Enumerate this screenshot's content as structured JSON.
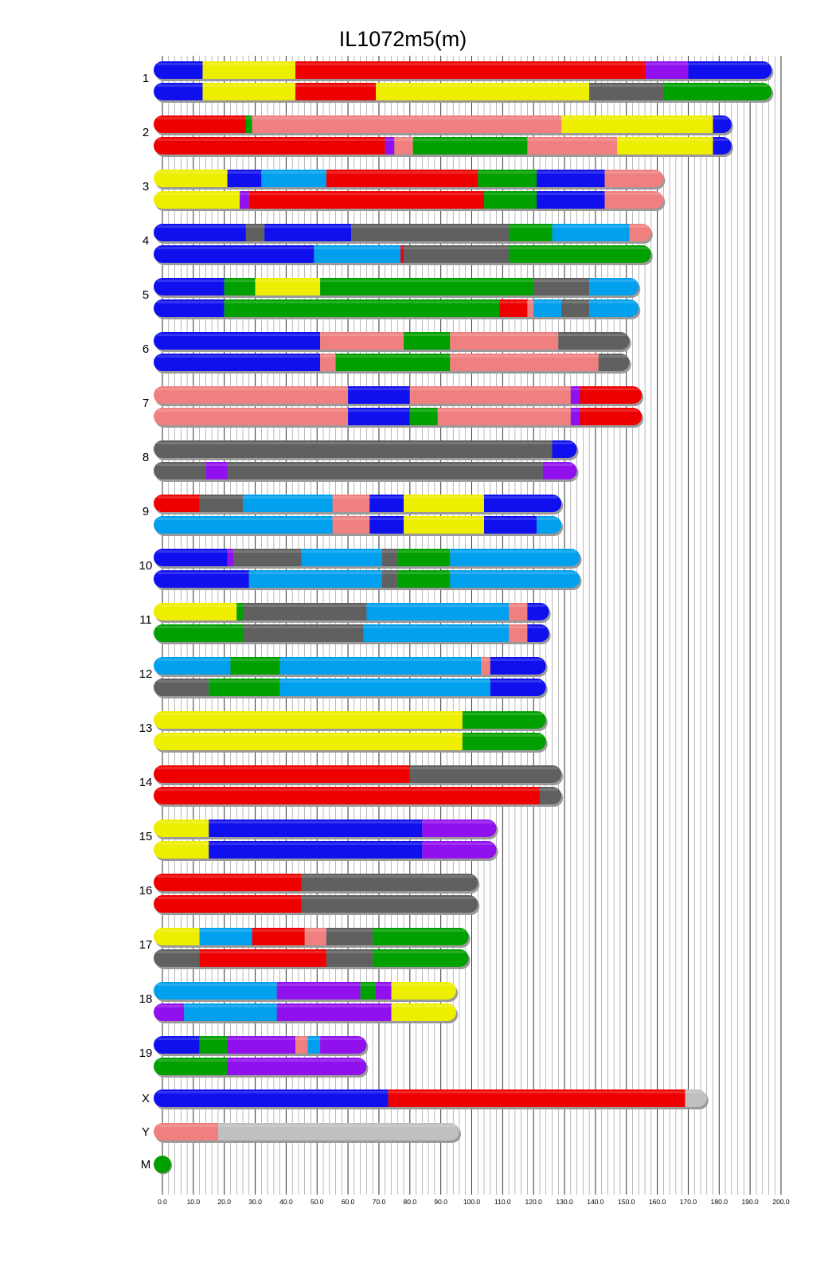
{
  "chart_data": {
    "type": "chromosome_haplotype_map",
    "title": "IL1072m5(m)",
    "x_axis": {
      "min": 0,
      "max": 200,
      "tick_labels": [
        "0.0",
        "10.0",
        "20.0",
        "30.0",
        "40.0",
        "50.0",
        "60.0",
        "70.0",
        "80.0",
        "90.0",
        "100.0",
        "110.0",
        "120.0",
        "130.0",
        "140.0",
        "150.0",
        "160.0",
        "170.0",
        "180.0",
        "190.0",
        "200.0"
      ],
      "minor_grid_step": 2
    },
    "palette": {
      "blue": "#1010ee",
      "yellow": "#eeee00",
      "red": "#ee0000",
      "purple": "#9010ee",
      "green": "#00a000",
      "gray": "#606060",
      "pink": "#f08080",
      "lightblue": "#00a0ee",
      "lightgray": "#c0c0c0"
    },
    "chromosomes": [
      {
        "label": "1",
        "length": 197,
        "haplotypes": [
          [
            [
              0,
              "blue"
            ],
            [
              13,
              "yellow"
            ],
            [
              43,
              "red"
            ],
            [
              156,
              "purple"
            ],
            [
              170,
              "blue"
            ]
          ],
          [
            [
              0,
              "blue"
            ],
            [
              13,
              "yellow"
            ],
            [
              43,
              "red"
            ],
            [
              69,
              "yellow"
            ],
            [
              138,
              "gray"
            ],
            [
              162,
              "green"
            ]
          ]
        ]
      },
      {
        "label": "2",
        "length": 184,
        "haplotypes": [
          [
            [
              0,
              "red"
            ],
            [
              27,
              "green"
            ],
            [
              29,
              "pink"
            ],
            [
              129,
              "yellow"
            ],
            [
              178,
              "blue"
            ]
          ],
          [
            [
              0,
              "red"
            ],
            [
              72,
              "purple"
            ],
            [
              75,
              "pink"
            ],
            [
              81,
              "green"
            ],
            [
              118,
              "pink"
            ],
            [
              147,
              "yellow"
            ],
            [
              178,
              "blue"
            ]
          ]
        ]
      },
      {
        "label": "3",
        "length": 162,
        "haplotypes": [
          [
            [
              0,
              "yellow"
            ],
            [
              21,
              "blue"
            ],
            [
              32,
              "lightblue"
            ],
            [
              53,
              "red"
            ],
            [
              102,
              "green"
            ],
            [
              121,
              "blue"
            ],
            [
              143,
              "pink"
            ]
          ],
          [
            [
              0,
              "yellow"
            ],
            [
              25,
              "purple"
            ],
            [
              28,
              "red"
            ],
            [
              104,
              "green"
            ],
            [
              121,
              "blue"
            ],
            [
              143,
              "pink"
            ]
          ]
        ]
      },
      {
        "label": "4",
        "length": 158,
        "haplotypes": [
          [
            [
              0,
              "blue"
            ],
            [
              27,
              "gray"
            ],
            [
              33,
              "blue"
            ],
            [
              61,
              "gray"
            ],
            [
              112,
              "green"
            ],
            [
              126,
              "lightblue"
            ],
            [
              151,
              "pink"
            ]
          ],
          [
            [
              0,
              "blue"
            ],
            [
              49,
              "lightblue"
            ],
            [
              77,
              "red"
            ],
            [
              78,
              "gray"
            ],
            [
              112,
              "green"
            ]
          ]
        ]
      },
      {
        "label": "5",
        "length": 154,
        "haplotypes": [
          [
            [
              0,
              "blue"
            ],
            [
              20,
              "green"
            ],
            [
              30,
              "yellow"
            ],
            [
              51,
              "green"
            ],
            [
              120,
              "gray"
            ],
            [
              138,
              "lightblue"
            ]
          ],
          [
            [
              0,
              "blue"
            ],
            [
              20,
              "green"
            ],
            [
              109,
              "red"
            ],
            [
              118,
              "pink"
            ],
            [
              120,
              "lightblue"
            ],
            [
              129,
              "gray"
            ],
            [
              138,
              "lightblue"
            ]
          ]
        ]
      },
      {
        "label": "6",
        "length": 151,
        "haplotypes": [
          [
            [
              0,
              "blue"
            ],
            [
              51,
              "pink"
            ],
            [
              78,
              "green"
            ],
            [
              93,
              "pink"
            ],
            [
              128,
              "gray"
            ]
          ],
          [
            [
              0,
              "blue"
            ],
            [
              51,
              "pink"
            ],
            [
              56,
              "green"
            ],
            [
              93,
              "pink"
            ],
            [
              141,
              "gray"
            ]
          ]
        ]
      },
      {
        "label": "7",
        "length": 155,
        "haplotypes": [
          [
            [
              0,
              "pink"
            ],
            [
              60,
              "blue"
            ],
            [
              80,
              "pink"
            ],
            [
              132,
              "purple"
            ],
            [
              135,
              "red"
            ]
          ],
          [
            [
              0,
              "pink"
            ],
            [
              60,
              "blue"
            ],
            [
              80,
              "green"
            ],
            [
              89,
              "pink"
            ],
            [
              132,
              "purple"
            ],
            [
              135,
              "red"
            ]
          ]
        ]
      },
      {
        "label": "8",
        "length": 134,
        "haplotypes": [
          [
            [
              0,
              "gray"
            ],
            [
              126,
              "blue"
            ]
          ],
          [
            [
              0,
              "gray"
            ],
            [
              14,
              "purple"
            ],
            [
              21,
              "gray"
            ],
            [
              123,
              "purple"
            ]
          ]
        ]
      },
      {
        "label": "9",
        "length": 129,
        "haplotypes": [
          [
            [
              0,
              "red"
            ],
            [
              12,
              "gray"
            ],
            [
              26,
              "lightblue"
            ],
            [
              55,
              "pink"
            ],
            [
              67,
              "blue"
            ],
            [
              78,
              "yellow"
            ],
            [
              104,
              "blue"
            ]
          ],
          [
            [
              0,
              "lightblue"
            ],
            [
              55,
              "pink"
            ],
            [
              67,
              "blue"
            ],
            [
              78,
              "yellow"
            ],
            [
              104,
              "blue"
            ],
            [
              121,
              "lightblue"
            ]
          ]
        ]
      },
      {
        "label": "10",
        "length": 135,
        "haplotypes": [
          [
            [
              0,
              "blue"
            ],
            [
              21,
              "purple"
            ],
            [
              23,
              "gray"
            ],
            [
              45,
              "lightblue"
            ],
            [
              71,
              "gray"
            ],
            [
              76,
              "green"
            ],
            [
              93,
              "lightblue"
            ]
          ],
          [
            [
              0,
              "blue"
            ],
            [
              28,
              "lightblue"
            ],
            [
              71,
              "gray"
            ],
            [
              76,
              "green"
            ],
            [
              93,
              "lightblue"
            ]
          ]
        ]
      },
      {
        "label": "11",
        "length": 125,
        "haplotypes": [
          [
            [
              0,
              "yellow"
            ],
            [
              24,
              "green"
            ],
            [
              26,
              "gray"
            ],
            [
              66,
              "lightblue"
            ],
            [
              112,
              "pink"
            ],
            [
              118,
              "blue"
            ]
          ],
          [
            [
              0,
              "green"
            ],
            [
              26,
              "gray"
            ],
            [
              65,
              "lightblue"
            ],
            [
              112,
              "pink"
            ],
            [
              118,
              "blue"
            ]
          ]
        ]
      },
      {
        "label": "12",
        "length": 124,
        "haplotypes": [
          [
            [
              0,
              "lightblue"
            ],
            [
              22,
              "green"
            ],
            [
              38,
              "lightblue"
            ],
            [
              103,
              "pink"
            ],
            [
              106,
              "blue"
            ]
          ],
          [
            [
              0,
              "gray"
            ],
            [
              15,
              "green"
            ],
            [
              38,
              "lightblue"
            ],
            [
              106,
              "blue"
            ]
          ]
        ]
      },
      {
        "label": "13",
        "length": 124,
        "haplotypes": [
          [
            [
              0,
              "yellow"
            ],
            [
              97,
              "green"
            ]
          ],
          [
            [
              0,
              "yellow"
            ],
            [
              97,
              "green"
            ]
          ]
        ]
      },
      {
        "label": "14",
        "length": 129,
        "haplotypes": [
          [
            [
              0,
              "red"
            ],
            [
              80,
              "gray"
            ]
          ],
          [
            [
              0,
              "red"
            ],
            [
              122,
              "gray"
            ]
          ]
        ]
      },
      {
        "label": "15",
        "length": 108,
        "haplotypes": [
          [
            [
              0,
              "yellow"
            ],
            [
              15,
              "blue"
            ],
            [
              84,
              "purple"
            ]
          ],
          [
            [
              0,
              "yellow"
            ],
            [
              15,
              "blue"
            ],
            [
              84,
              "purple"
            ]
          ]
        ]
      },
      {
        "label": "16",
        "length": 102,
        "haplotypes": [
          [
            [
              0,
              "red"
            ],
            [
              45,
              "gray"
            ]
          ],
          [
            [
              0,
              "red"
            ],
            [
              45,
              "gray"
            ]
          ]
        ]
      },
      {
        "label": "17",
        "length": 99,
        "haplotypes": [
          [
            [
              0,
              "yellow"
            ],
            [
              12,
              "lightblue"
            ],
            [
              29,
              "red"
            ],
            [
              46,
              "pink"
            ],
            [
              53,
              "gray"
            ],
            [
              68,
              "green"
            ]
          ],
          [
            [
              0,
              "gray"
            ],
            [
              12,
              "red"
            ],
            [
              53,
              "gray"
            ],
            [
              68,
              "green"
            ]
          ]
        ]
      },
      {
        "label": "18",
        "length": 95,
        "haplotypes": [
          [
            [
              0,
              "lightblue"
            ],
            [
              37,
              "purple"
            ],
            [
              64,
              "green"
            ],
            [
              69,
              "purple"
            ],
            [
              74,
              "yellow"
            ]
          ],
          [
            [
              0,
              "purple"
            ],
            [
              7,
              "lightblue"
            ],
            [
              37,
              "purple"
            ],
            [
              74,
              "yellow"
            ]
          ]
        ]
      },
      {
        "label": "19",
        "length": 66,
        "haplotypes": [
          [
            [
              0,
              "blue"
            ],
            [
              12,
              "green"
            ],
            [
              21,
              "purple"
            ],
            [
              43,
              "pink"
            ],
            [
              47,
              "lightblue"
            ],
            [
              51,
              "purple"
            ]
          ],
          [
            [
              0,
              "green"
            ],
            [
              21,
              "purple"
            ]
          ]
        ]
      },
      {
        "label": "X",
        "length": 176,
        "haplotypes": [
          [
            [
              0,
              "blue"
            ],
            [
              73,
              "red"
            ],
            [
              169,
              "lightgray"
            ]
          ]
        ]
      },
      {
        "label": "Y",
        "length": 96,
        "haplotypes": [
          [
            [
              0,
              "pink"
            ],
            [
              18,
              "lightgray"
            ]
          ]
        ]
      },
      {
        "label": "M",
        "length": 0,
        "haplotypes": [
          [
            [
              0,
              "green"
            ]
          ]
        ]
      }
    ]
  }
}
